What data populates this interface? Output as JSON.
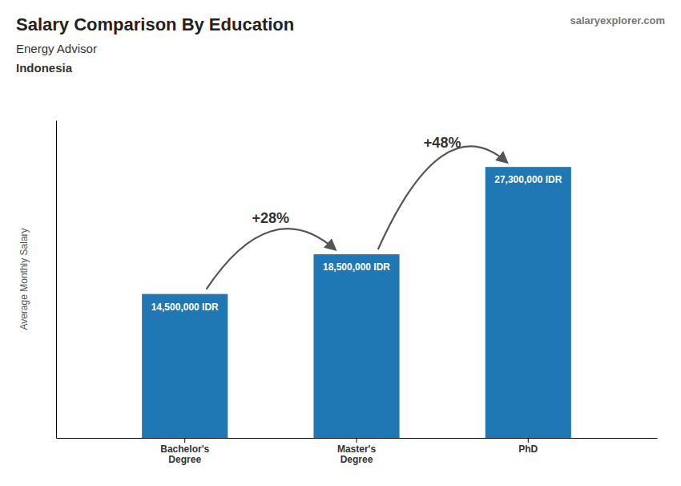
{
  "chart_data": {
    "type": "bar",
    "title": "Salary Comparison By Education",
    "subtitle": "Energy Advisor",
    "annotations": [
      "Indonesia",
      "salaryexplorer.com"
    ],
    "change_labels": [
      "+28%",
      "+48%"
    ],
    "ylabel": "Average Monthly Salary",
    "categories": [
      "Bachelor's\nDegree",
      "Master's\nDegree",
      "PhD"
    ],
    "values": [
      14500000,
      18500000,
      27300000
    ],
    "value_labels": [
      "14,500,000 IDR",
      "18,500,000 IDR",
      "27,300,000 IDR"
    ],
    "data_labels": true,
    "ylim": [
      0,
      32000000
    ],
    "tick_labels": "x",
    "grid": false
  }
}
